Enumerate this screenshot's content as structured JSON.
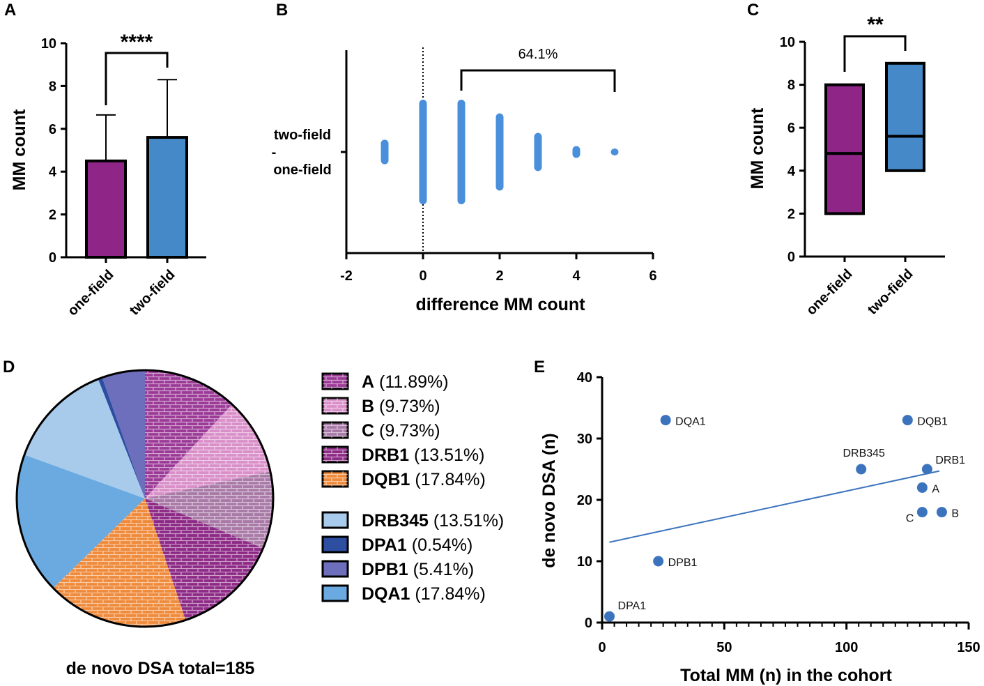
{
  "colors": {
    "purple": "#8e2587",
    "blue": "#4589c8",
    "point": "#3b73bd",
    "dots": "#4a8fdb"
  },
  "panels": {
    "A": "A",
    "B": "B",
    "C": "C",
    "D": "D",
    "E": "E"
  },
  "chart_data": [
    {
      "panel": "A",
      "type": "bar",
      "categories": [
        "one-field",
        "two-field"
      ],
      "values": [
        4.5,
        5.6
      ],
      "errors": [
        2.15,
        2.7
      ],
      "ylabel": "MM count",
      "ylim": [
        0,
        10
      ],
      "yticks": [
        "0",
        "2",
        "4",
        "6",
        "8",
        "10"
      ],
      "significance": "****"
    },
    {
      "panel": "B",
      "type": "scatter",
      "xlabel": "difference MM count",
      "ylabel_lines": [
        "two-field",
        "-",
        "one-field"
      ],
      "xlim": [
        -2,
        6
      ],
      "xticks": [
        "-2",
        "0",
        "2",
        "4",
        "6"
      ],
      "strip": [
        {
          "x": -1,
          "spread": 0.18
        },
        {
          "x": 0,
          "spread": 1.0
        },
        {
          "x": 1,
          "spread": 1.0
        },
        {
          "x": 2,
          "spread": 0.72
        },
        {
          "x": 3,
          "spread": 0.32
        },
        {
          "x": 4,
          "spread": 0.05
        },
        {
          "x": 5,
          "spread": 0.0
        }
      ],
      "bracket_from": 1,
      "bracket_to": 5,
      "annotation": "64.1%"
    },
    {
      "panel": "C",
      "type": "box",
      "categories": [
        "one-field",
        "two-field"
      ],
      "boxes": [
        {
          "low": 2,
          "median": 4.8,
          "high": 8
        },
        {
          "low": 4,
          "median": 5.6,
          "high": 9
        }
      ],
      "ylabel": "MM count",
      "ylim": [
        0,
        10
      ],
      "yticks": [
        "0",
        "2",
        "4",
        "6",
        "8",
        "10"
      ],
      "significance": "**"
    },
    {
      "panel": "D",
      "type": "pie",
      "title": "de novo DSA total=185",
      "slices": [
        {
          "label": "A",
          "pct": "(11.89%)",
          "value": 11.89,
          "color": "#9b3a97",
          "pattern": "brick"
        },
        {
          "label": "B",
          "pct": "(9.73%)",
          "value": 9.73,
          "color": "#d98fc8",
          "pattern": "brick"
        },
        {
          "label": "C",
          "pct": "(9.73%)",
          "value": 9.73,
          "color": "#a97aa7",
          "pattern": "brick"
        },
        {
          "label": "DRB1",
          "pct": "(13.51%)",
          "value": 13.51,
          "color": "#8d2a86",
          "pattern": "brick"
        },
        {
          "label": "DQB1",
          "pct": "(17.84%)",
          "value": 17.84,
          "color": "#ef8a3a",
          "pattern": "brick"
        },
        {
          "label": "DQA1",
          "pct": "(17.84%)",
          "value": 17.84,
          "color": "#6aaae0",
          "pattern": "none"
        },
        {
          "label": "DRB345",
          "pct": "(13.51%)",
          "value": 13.51,
          "color": "#a8cbec",
          "pattern": "none"
        },
        {
          "label": "DPA1",
          "pct": "(0.54%)",
          "value": 0.54,
          "color": "#2e4ea2",
          "pattern": "none"
        },
        {
          "label": "DPB1",
          "pct": "(5.41%)",
          "value": 5.41,
          "color": "#6d6fbd",
          "pattern": "none"
        }
      ],
      "legend_order": [
        "A",
        "B",
        "C",
        "DRB1",
        "DQB1",
        "DRB345",
        "DPA1",
        "DPB1",
        "DQA1"
      ]
    },
    {
      "panel": "E",
      "type": "scatter",
      "xlabel": "Total MM (n) in the cohort",
      "ylabel": "de novo DSA (n)",
      "xlim": [
        0,
        150
      ],
      "ylim": [
        0,
        40
      ],
      "xticks": [
        "0",
        "50",
        "100",
        "150"
      ],
      "yticks": [
        "0",
        "10",
        "20",
        "30",
        "40"
      ],
      "points": [
        {
          "label": "DQA1",
          "x": 26,
          "y": 33
        },
        {
          "label": "DQB1",
          "x": 125,
          "y": 33
        },
        {
          "label": "DRB345",
          "x": 106,
          "y": 25
        },
        {
          "label": "DRB1",
          "x": 133,
          "y": 25
        },
        {
          "label": "A",
          "x": 131,
          "y": 22
        },
        {
          "label": "C",
          "x": 131,
          "y": 18
        },
        {
          "label": "B",
          "x": 139,
          "y": 18
        },
        {
          "label": "DPB1",
          "x": 23,
          "y": 10
        },
        {
          "label": "DPA1",
          "x": 3,
          "y": 1
        }
      ],
      "trend": {
        "x1": 3,
        "y1": 13.1,
        "x2": 138,
        "y2": 24.7
      }
    }
  ]
}
